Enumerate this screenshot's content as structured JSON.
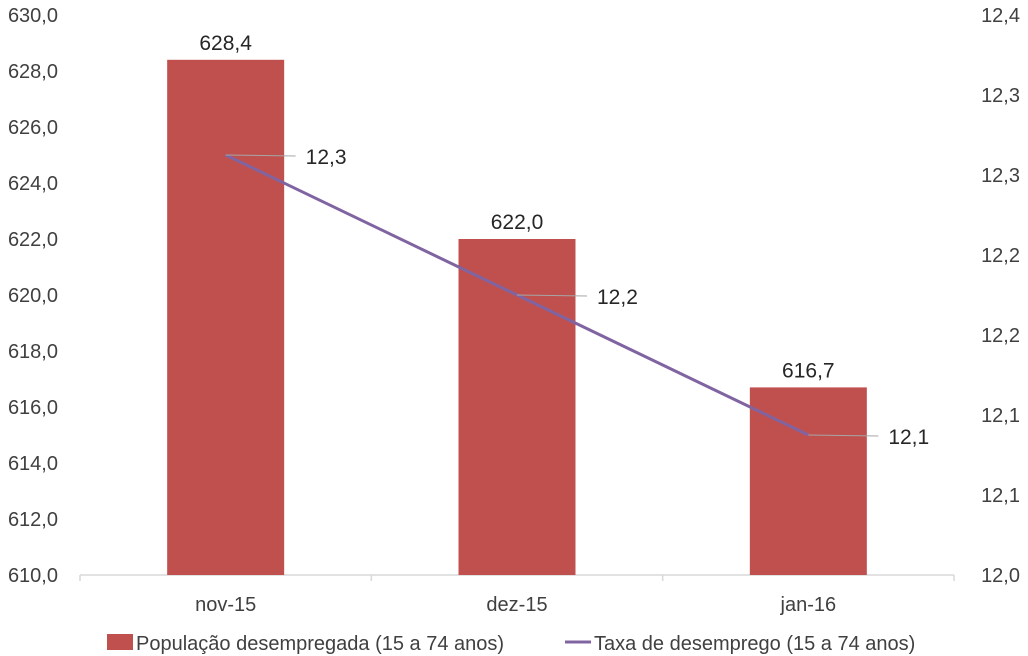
{
  "chart_data": {
    "type": "bar",
    "categories": [
      "nov-15",
      "dez-15",
      "jan-16"
    ],
    "series": [
      {
        "name": "População desempregada (15 a 74 anos)",
        "type": "bar",
        "axis": "left",
        "values": [
          628.4,
          622.0,
          616.7
        ],
        "labels": [
          "628,4",
          "622,0",
          "616,7"
        ],
        "color": "#C0504D"
      },
      {
        "name": "Taxa de desemprego (15 a 74 anos)",
        "type": "line",
        "axis": "right",
        "values": [
          12.3,
          12.2,
          12.1
        ],
        "labels": [
          "12,3",
          "12,2",
          "12,1"
        ],
        "color": "#8064A2"
      }
    ],
    "y_left": {
      "ylim": [
        610,
        630
      ],
      "ticks": [
        "610,0",
        "612,0",
        "614,0",
        "616,0",
        "618,0",
        "620,0",
        "622,0",
        "624,0",
        "626,0",
        "628,0",
        "630,0"
      ]
    },
    "y_right": {
      "ylim": [
        12.0,
        12.4
      ],
      "ticks": [
        "12,0",
        "12,1",
        "12,1",
        "12,2",
        "12,2",
        "12,3",
        "12,3",
        "12,4"
      ]
    },
    "grid": false,
    "legend": "bottom",
    "colors": {
      "axis": "#D9D9D9",
      "leader": "#A6A6A6"
    }
  }
}
